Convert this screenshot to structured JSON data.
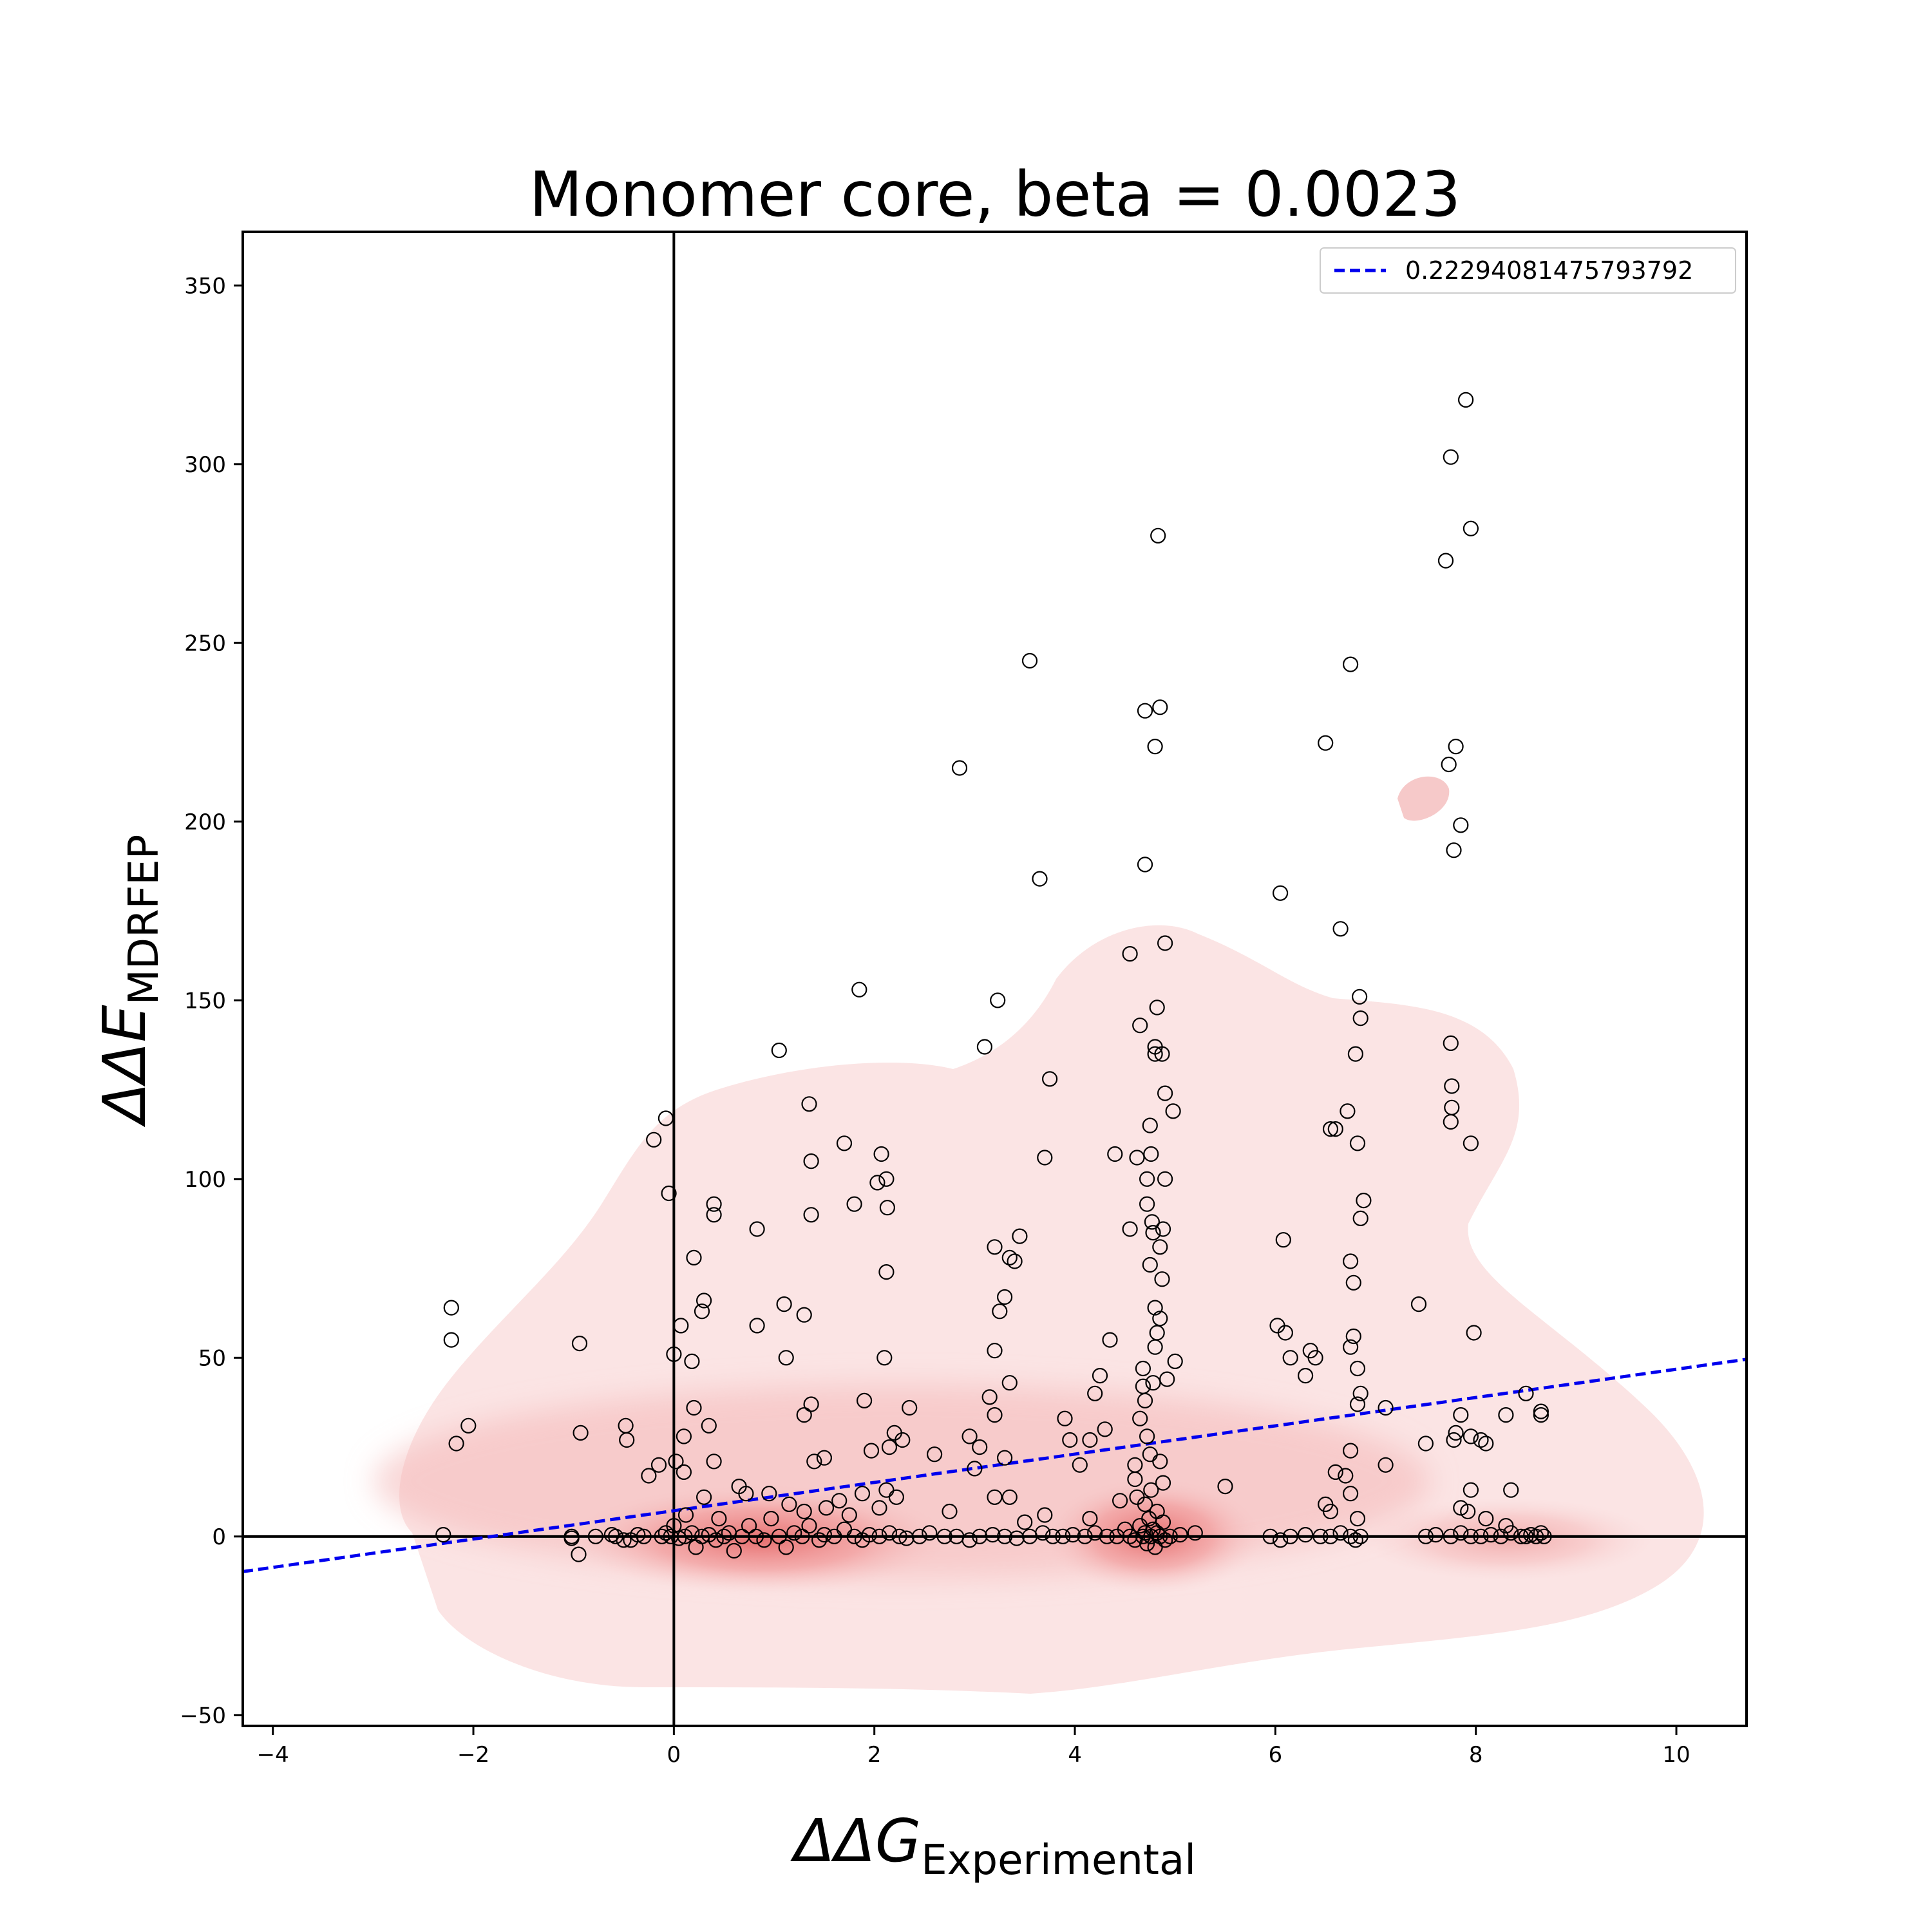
{
  "chart_data": {
    "type": "scatter",
    "title": "Monomer core, beta = 0.0023",
    "xlabel": {
      "main": "ΔΔG",
      "sub": "Experimental"
    },
    "ylabel": {
      "main": "ΔΔE",
      "sub": "MDRFEP"
    },
    "xlim": [
      -4.3,
      10.7
    ],
    "ylim": [
      -53,
      365
    ],
    "xticks": [
      -4,
      -2,
      0,
      2,
      4,
      6,
      8,
      10
    ],
    "yticks": [
      -50,
      0,
      50,
      100,
      150,
      200,
      250,
      300,
      350
    ],
    "xtick_labels": [
      "−4",
      "−2",
      "0",
      "2",
      "4",
      "6",
      "8",
      "10"
    ],
    "ytick_labels": [
      "−50",
      "0",
      "50",
      "100",
      "150",
      "200",
      "250",
      "300",
      "350"
    ],
    "grid": false,
    "reference_lines": {
      "x": 0,
      "y": 0
    },
    "legend": {
      "position": "top-right",
      "label": "0.22294081475793792"
    },
    "fit_line": {
      "label": "0.22294081475793792",
      "slope": 3.96,
      "intercept": 7.2,
      "color": "#0000ee",
      "style": "dashed"
    },
    "kde_color": "#e86060",
    "marker": {
      "shape": "open-circle",
      "color": "#000000"
    },
    "points": [
      [
        -2.22,
        64
      ],
      [
        -2.22,
        55
      ],
      [
        -2.05,
        31
      ],
      [
        -2.17,
        26
      ],
      [
        -2.3,
        0.5
      ],
      [
        -0.94,
        54
      ],
      [
        -0.93,
        29
      ],
      [
        -0.48,
        31
      ],
      [
        -0.47,
        27
      ],
      [
        -0.25,
        17
      ],
      [
        -0.2,
        111
      ],
      [
        -0.08,
        117
      ],
      [
        -0.05,
        96
      ],
      [
        -0.15,
        20
      ],
      [
        0.0,
        51
      ],
      [
        0.1,
        28
      ],
      [
        0.07,
        59
      ],
      [
        0.2,
        78
      ],
      [
        0.3,
        66
      ],
      [
        0.28,
        63
      ],
      [
        0.4,
        93
      ],
      [
        0.4,
        90
      ],
      [
        0.18,
        49
      ],
      [
        0.2,
        36
      ],
      [
        0.35,
        31
      ],
      [
        0.4,
        21
      ],
      [
        0.3,
        11
      ],
      [
        0.1,
        18
      ],
      [
        0.02,
        21
      ],
      [
        0.83,
        86
      ],
      [
        0.83,
        59
      ],
      [
        1.1,
        65
      ],
      [
        1.12,
        50
      ],
      [
        1.05,
        136
      ],
      [
        1.3,
        62
      ],
      [
        1.35,
        121
      ],
      [
        1.37,
        105
      ],
      [
        1.37,
        90
      ],
      [
        1.37,
        37
      ],
      [
        1.3,
        34
      ],
      [
        1.4,
        21
      ],
      [
        1.5,
        22
      ],
      [
        1.65,
        10
      ],
      [
        1.7,
        110
      ],
      [
        1.8,
        93
      ],
      [
        1.85,
        153
      ],
      [
        1.9,
        38
      ],
      [
        1.97,
        24
      ],
      [
        2.03,
        99
      ],
      [
        2.07,
        107
      ],
      [
        2.12,
        100
      ],
      [
        2.13,
        92
      ],
      [
        2.12,
        74
      ],
      [
        2.1,
        50
      ],
      [
        2.15,
        25
      ],
      [
        2.2,
        29
      ],
      [
        2.35,
        36
      ],
      [
        2.28,
        27
      ],
      [
        2.6,
        23
      ],
      [
        2.85,
        215
      ],
      [
        3.1,
        137
      ],
      [
        3.2,
        81
      ],
      [
        3.25,
        63
      ],
      [
        3.3,
        67
      ],
      [
        3.35,
        78
      ],
      [
        3.4,
        77
      ],
      [
        3.45,
        84
      ],
      [
        3.55,
        245
      ],
      [
        3.65,
        184
      ],
      [
        3.75,
        128
      ],
      [
        3.7,
        106
      ],
      [
        3.23,
        150
      ],
      [
        3.2,
        52
      ],
      [
        3.15,
        39
      ],
      [
        3.2,
        34
      ],
      [
        3.35,
        43
      ],
      [
        3.3,
        22
      ],
      [
        3.0,
        19
      ],
      [
        2.95,
        28
      ],
      [
        3.05,
        25
      ],
      [
        3.9,
        33
      ],
      [
        3.95,
        27
      ],
      [
        4.05,
        20
      ],
      [
        4.15,
        27
      ],
      [
        4.2,
        40
      ],
      [
        4.25,
        45
      ],
      [
        4.3,
        30
      ],
      [
        4.35,
        55
      ],
      [
        4.4,
        107
      ],
      [
        4.55,
        86
      ],
      [
        4.55,
        163
      ],
      [
        4.62,
        106
      ],
      [
        4.65,
        143
      ],
      [
        4.7,
        231
      ],
      [
        4.7,
        188
      ],
      [
        4.72,
        100
      ],
      [
        4.72,
        93
      ],
      [
        4.75,
        115
      ],
      [
        4.76,
        107
      ],
      [
        4.77,
        88
      ],
      [
        4.78,
        85
      ],
      [
        4.8,
        221
      ],
      [
        4.8,
        137
      ],
      [
        4.8,
        135
      ],
      [
        4.83,
        280
      ],
      [
        4.85,
        232
      ],
      [
        4.82,
        148
      ],
      [
        4.87,
        135
      ],
      [
        4.85,
        81
      ],
      [
        4.87,
        72
      ],
      [
        4.9,
        166
      ],
      [
        4.9,
        124
      ],
      [
        4.9,
        100
      ],
      [
        4.88,
        86
      ],
      [
        4.75,
        76
      ],
      [
        4.8,
        64
      ],
      [
        4.85,
        61
      ],
      [
        4.82,
        57
      ],
      [
        4.8,
        53
      ],
      [
        4.78,
        43
      ],
      [
        4.92,
        44
      ],
      [
        4.98,
        119
      ],
      [
        5.0,
        49
      ],
      [
        4.68,
        47
      ],
      [
        4.68,
        42
      ],
      [
        4.7,
        38
      ],
      [
        4.65,
        33
      ],
      [
        4.72,
        28
      ],
      [
        4.75,
        23
      ],
      [
        4.6,
        20
      ],
      [
        4.6,
        16
      ],
      [
        4.85,
        21
      ],
      [
        5.5,
        14
      ],
      [
        6.05,
        180
      ],
      [
        6.08,
        83
      ],
      [
        6.02,
        59
      ],
      [
        6.1,
        57
      ],
      [
        6.15,
        50
      ],
      [
        6.3,
        45
      ],
      [
        6.35,
        52
      ],
      [
        6.4,
        50
      ],
      [
        6.5,
        222
      ],
      [
        6.55,
        114
      ],
      [
        6.6,
        114
      ],
      [
        6.65,
        170
      ],
      [
        6.75,
        244
      ],
      [
        6.72,
        119
      ],
      [
        6.8,
        135
      ],
      [
        6.84,
        151
      ],
      [
        6.85,
        145
      ],
      [
        6.82,
        110
      ],
      [
        6.88,
        94
      ],
      [
        6.85,
        89
      ],
      [
        6.75,
        77
      ],
      [
        6.78,
        71
      ],
      [
        6.78,
        56
      ],
      [
        6.75,
        53
      ],
      [
        6.82,
        47
      ],
      [
        6.85,
        40
      ],
      [
        6.82,
        37
      ],
      [
        6.75,
        24
      ],
      [
        6.7,
        17
      ],
      [
        6.75,
        12
      ],
      [
        7.1,
        36
      ],
      [
        7.1,
        20
      ],
      [
        7.43,
        65
      ],
      [
        7.5,
        26
      ],
      [
        7.7,
        273
      ],
      [
        7.75,
        302
      ],
      [
        7.73,
        216
      ],
      [
        7.8,
        221
      ],
      [
        7.85,
        199
      ],
      [
        7.78,
        192
      ],
      [
        7.75,
        138
      ],
      [
        7.76,
        126
      ],
      [
        7.76,
        120
      ],
      [
        7.75,
        116
      ],
      [
        7.85,
        34
      ],
      [
        7.8,
        29
      ],
      [
        7.78,
        27
      ],
      [
        7.9,
        318
      ],
      [
        7.95,
        282
      ],
      [
        7.95,
        110
      ],
      [
        7.98,
        57
      ],
      [
        7.95,
        28
      ],
      [
        7.95,
        13
      ],
      [
        8.05,
        27
      ],
      [
        8.1,
        26
      ],
      [
        8.3,
        34
      ],
      [
        8.35,
        13
      ],
      [
        8.5,
        40
      ],
      [
        8.65,
        35
      ],
      [
        8.65,
        34
      ],
      [
        -1.02,
        0
      ],
      [
        -1.02,
        -0.5
      ],
      [
        -0.95,
        -5
      ],
      [
        -0.78,
        0
      ],
      [
        -0.62,
        0.5
      ],
      [
        -0.58,
        0
      ],
      [
        -0.43,
        -1
      ],
      [
        -0.36,
        0.5
      ],
      [
        -0.3,
        0
      ],
      [
        -0.12,
        0
      ],
      [
        -0.08,
        1
      ],
      [
        -0.03,
        0
      ],
      [
        0.05,
        -0.5
      ],
      [
        0.11,
        0
      ],
      [
        0.18,
        1
      ],
      [
        0.22,
        -3
      ],
      [
        0.28,
        0
      ],
      [
        0.35,
        0.5
      ],
      [
        0.42,
        -1
      ],
      [
        0.5,
        0
      ],
      [
        0.55,
        1
      ],
      [
        0.6,
        -4
      ],
      [
        0.68,
        0
      ],
      [
        0.75,
        3
      ],
      [
        0.82,
        0
      ],
      [
        0.9,
        -1
      ],
      [
        0.97,
        5
      ],
      [
        1.05,
        0
      ],
      [
        1.12,
        -3
      ],
      [
        1.2,
        1
      ],
      [
        1.28,
        0
      ],
      [
        1.35,
        3
      ],
      [
        1.45,
        -1
      ],
      [
        1.5,
        0.5
      ],
      [
        1.6,
        0
      ],
      [
        1.7,
        2
      ],
      [
        1.8,
        0
      ],
      [
        1.88,
        -1
      ],
      [
        1.95,
        0.5
      ],
      [
        2.05,
        0
      ],
      [
        2.15,
        1
      ],
      [
        2.25,
        0
      ],
      [
        2.32,
        -0.5
      ],
      [
        2.45,
        0
      ],
      [
        2.55,
        1
      ],
      [
        2.7,
        0
      ],
      [
        2.82,
        0
      ],
      [
        2.95,
        -1
      ],
      [
        3.05,
        0
      ],
      [
        3.18,
        0.5
      ],
      [
        3.3,
        0
      ],
      [
        3.42,
        -0.5
      ],
      [
        3.55,
        0
      ],
      [
        3.68,
        1
      ],
      [
        3.78,
        0
      ],
      [
        3.88,
        0
      ],
      [
        3.98,
        0.5
      ],
      [
        4.1,
        0
      ],
      [
        4.2,
        1
      ],
      [
        4.32,
        0
      ],
      [
        4.42,
        0
      ],
      [
        4.5,
        2
      ],
      [
        4.55,
        0
      ],
      [
        4.6,
        -1
      ],
      [
        4.65,
        3
      ],
      [
        4.68,
        0
      ],
      [
        4.7,
        1
      ],
      [
        4.72,
        -2
      ],
      [
        4.74,
        5
      ],
      [
        4.76,
        0
      ],
      [
        4.78,
        2
      ],
      [
        4.8,
        -3
      ],
      [
        4.82,
        1
      ],
      [
        4.85,
        0
      ],
      [
        4.88,
        4
      ],
      [
        4.9,
        -1
      ],
      [
        4.95,
        0
      ],
      [
        5.05,
        0.5
      ],
      [
        5.2,
        1
      ],
      [
        5.95,
        0
      ],
      [
        6.05,
        -1
      ],
      [
        6.15,
        0
      ],
      [
        6.3,
        0.5
      ],
      [
        6.45,
        0
      ],
      [
        6.55,
        0
      ],
      [
        6.65,
        1
      ],
      [
        6.75,
        0
      ],
      [
        6.8,
        -1
      ],
      [
        6.85,
        0
      ],
      [
        7.5,
        0
      ],
      [
        7.6,
        0.5
      ],
      [
        7.75,
        0
      ],
      [
        7.85,
        1
      ],
      [
        7.95,
        0
      ],
      [
        8.05,
        0
      ],
      [
        8.15,
        0.5
      ],
      [
        8.25,
        0
      ],
      [
        8.35,
        1
      ],
      [
        8.45,
        0
      ],
      [
        8.5,
        0
      ],
      [
        8.55,
        0.5
      ],
      [
        8.6,
        0
      ],
      [
        8.65,
        1
      ],
      [
        8.68,
        0
      ],
      [
        0.65,
        14
      ],
      [
        0.72,
        12
      ],
      [
        0.95,
        12
      ],
      [
        1.15,
        9
      ],
      [
        1.3,
        7
      ],
      [
        1.52,
        8
      ],
      [
        1.75,
        6
      ],
      [
        1.88,
        12
      ],
      [
        2.05,
        8
      ],
      [
        2.12,
        13
      ],
      [
        2.22,
        11
      ],
      [
        2.75,
        7
      ],
      [
        3.2,
        11
      ],
      [
        3.35,
        11
      ],
      [
        3.5,
        4
      ],
      [
        3.7,
        6
      ],
      [
        4.15,
        5
      ],
      [
        4.45,
        10
      ],
      [
        4.62,
        11
      ],
      [
        4.7,
        9
      ],
      [
        4.76,
        13
      ],
      [
        4.82,
        7
      ],
      [
        4.88,
        15
      ],
      [
        6.5,
        9
      ],
      [
        6.55,
        7
      ],
      [
        6.6,
        18
      ],
      [
        6.82,
        5
      ],
      [
        7.85,
        8
      ],
      [
        7.92,
        7
      ],
      [
        8.1,
        5
      ],
      [
        8.3,
        3
      ],
      [
        -0.5,
        -1
      ],
      [
        0.0,
        3
      ],
      [
        0.12,
        6
      ],
      [
        0.45,
        5
      ]
    ]
  }
}
